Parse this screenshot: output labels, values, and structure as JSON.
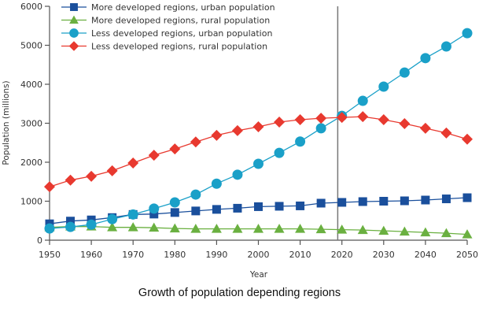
{
  "caption": "Growth of population depending regions",
  "chart_data": {
    "type": "line",
    "title": "",
    "xlabel": "Year",
    "ylabel": "Population (millions)",
    "xlim": [
      1950,
      2050
    ],
    "ylim": [
      0,
      6000
    ],
    "x_ticks": [
      1950,
      1960,
      1970,
      1980,
      1990,
      2000,
      2010,
      2020,
      2030,
      2040,
      2050
    ],
    "y_ticks": [
      0,
      1000,
      2000,
      3000,
      4000,
      5000,
      6000
    ],
    "grid": false,
    "legend_position": "top-left",
    "reference_line_x": 2019,
    "x": [
      1950,
      1955,
      1960,
      1965,
      1970,
      1975,
      1980,
      1985,
      1990,
      1995,
      2000,
      2005,
      2010,
      2015,
      2020,
      2025,
      2030,
      2035,
      2040,
      2045,
      2050
    ],
    "series": [
      {
        "name": "More developed regions, urban population",
        "color": "#1a4f9c",
        "marker": "square",
        "values": [
          420,
          490,
          520,
          580,
          660,
          670,
          710,
          750,
          790,
          820,
          860,
          870,
          880,
          950,
          970,
          990,
          1000,
          1010,
          1030,
          1060,
          1090
        ]
      },
      {
        "name": "More developed regions, rural population",
        "color": "#6ab040",
        "marker": "triangle",
        "values": [
          330,
          350,
          350,
          330,
          330,
          320,
          300,
          290,
          290,
          290,
          290,
          290,
          290,
          280,
          270,
          260,
          240,
          220,
          200,
          180,
          150
        ]
      },
      {
        "name": "Less developed regions, urban population",
        "color": "#1aa0c8",
        "marker": "circle",
        "values": [
          300,
          340,
          400,
          540,
          660,
          810,
          970,
          1170,
          1450,
          1680,
          1960,
          2240,
          2530,
          2870,
          3190,
          3575,
          3940,
          4300,
          4670,
          4970,
          5310
        ]
      },
      {
        "name": "Less developed regions, rural population",
        "color": "#e8392f",
        "marker": "diamond",
        "values": [
          1370,
          1540,
          1640,
          1780,
          1980,
          2180,
          2340,
          2520,
          2690,
          2810,
          2910,
          3030,
          3090,
          3130,
          3150,
          3170,
          3090,
          2990,
          2870,
          2750,
          2590
        ]
      }
    ]
  }
}
